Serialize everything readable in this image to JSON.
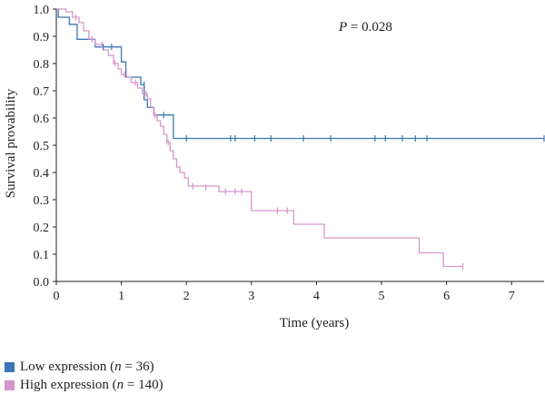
{
  "chart_data": {
    "type": "line",
    "title": "",
    "xlabel": "Time (years)",
    "ylabel": "Survival provability",
    "xlim": [
      0,
      7.5
    ],
    "ylim": [
      0,
      1.0
    ],
    "x_ticks": [
      "0",
      "1",
      "2",
      "3",
      "4",
      "5",
      "6",
      "7"
    ],
    "y_ticks": [
      "0.0",
      "0.1",
      "0.2",
      "0.3",
      "0.4",
      "0.5",
      "0.6",
      "0.7",
      "0.8",
      "0.9",
      "1.0"
    ],
    "annotation": {
      "label": "P",
      "text": " = 0.028"
    },
    "grid": false,
    "legend_position": "bottom-left",
    "series": [
      {
        "name": "Low expression",
        "legend_prefix": "Low expression (",
        "legend_n_label": "n",
        "legend_n_value": " = 36)",
        "color": "#3b78b5",
        "steps": [
          [
            0,
            1.0
          ],
          [
            0.03,
            0.97
          ],
          [
            0.2,
            0.944
          ],
          [
            0.32,
            0.889
          ],
          [
            0.6,
            0.861
          ],
          [
            1.0,
            0.806
          ],
          [
            1.07,
            0.75
          ],
          [
            1.3,
            0.722
          ],
          [
            1.35,
            0.667
          ],
          [
            1.4,
            0.639
          ],
          [
            1.5,
            0.611
          ],
          [
            1.8,
            0.525
          ],
          [
            7.5,
            0.525
          ]
        ],
        "censored": [
          [
            0.72,
            0.861
          ],
          [
            0.85,
            0.861
          ],
          [
            1.35,
            0.722
          ],
          [
            1.65,
            0.611
          ],
          [
            2.0,
            0.525
          ],
          [
            2.68,
            0.525
          ],
          [
            2.75,
            0.525
          ],
          [
            3.05,
            0.525
          ],
          [
            3.3,
            0.525
          ],
          [
            3.8,
            0.525
          ],
          [
            4.22,
            0.525
          ],
          [
            4.9,
            0.525
          ],
          [
            5.06,
            0.525
          ],
          [
            5.32,
            0.525
          ],
          [
            5.52,
            0.525
          ],
          [
            5.7,
            0.525
          ],
          [
            7.5,
            0.525
          ]
        ]
      },
      {
        "name": "High expression",
        "legend_prefix": "High expression (",
        "legend_n_label": "n",
        "legend_n_value": " = 140)",
        "color": "#d596cb",
        "steps": [
          [
            0,
            1.0
          ],
          [
            0.15,
            0.99
          ],
          [
            0.25,
            0.97
          ],
          [
            0.35,
            0.95
          ],
          [
            0.42,
            0.92
          ],
          [
            0.5,
            0.89
          ],
          [
            0.6,
            0.87
          ],
          [
            0.72,
            0.85
          ],
          [
            0.8,
            0.83
          ],
          [
            0.88,
            0.8
          ],
          [
            0.95,
            0.78
          ],
          [
            1.0,
            0.76
          ],
          [
            1.08,
            0.75
          ],
          [
            1.15,
            0.73
          ],
          [
            1.25,
            0.71
          ],
          [
            1.32,
            0.69
          ],
          [
            1.4,
            0.67
          ],
          [
            1.45,
            0.64
          ],
          [
            1.5,
            0.61
          ],
          [
            1.55,
            0.59
          ],
          [
            1.6,
            0.57
          ],
          [
            1.65,
            0.54
          ],
          [
            1.7,
            0.51
          ],
          [
            1.75,
            0.48
          ],
          [
            1.8,
            0.45
          ],
          [
            1.85,
            0.42
          ],
          [
            1.9,
            0.4
          ],
          [
            1.97,
            0.38
          ],
          [
            2.03,
            0.35
          ],
          [
            2.5,
            0.33
          ],
          [
            3.0,
            0.26
          ],
          [
            3.65,
            0.21
          ],
          [
            4.12,
            0.16
          ],
          [
            5.58,
            0.105
          ],
          [
            5.95,
            0.055
          ],
          [
            6.25,
            0.055
          ]
        ],
        "censored": [
          [
            0.3,
            0.97
          ],
          [
            0.55,
            0.89
          ],
          [
            0.7,
            0.87
          ],
          [
            0.9,
            0.8
          ],
          [
            1.05,
            0.76
          ],
          [
            1.22,
            0.73
          ],
          [
            1.38,
            0.69
          ],
          [
            1.52,
            0.61
          ],
          [
            1.72,
            0.51
          ],
          [
            2.1,
            0.35
          ],
          [
            2.3,
            0.345
          ],
          [
            2.6,
            0.33
          ],
          [
            2.75,
            0.33
          ],
          [
            2.85,
            0.33
          ],
          [
            3.4,
            0.26
          ],
          [
            3.55,
            0.26
          ],
          [
            6.25,
            0.055
          ]
        ]
      }
    ]
  }
}
